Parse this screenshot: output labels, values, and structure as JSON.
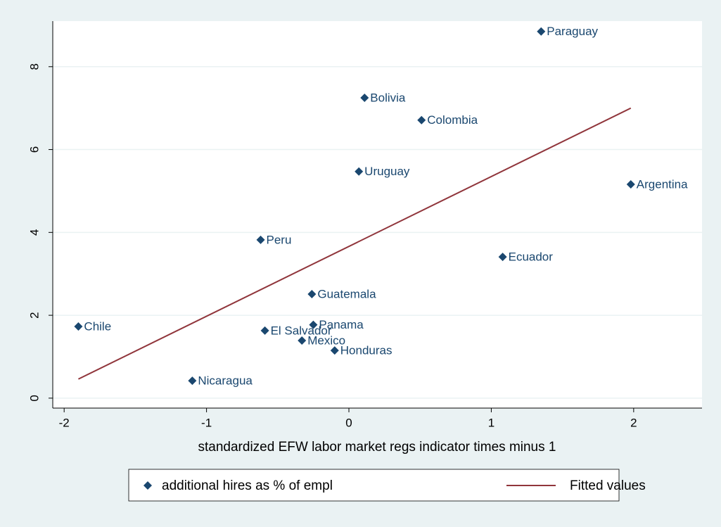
{
  "chart_data": {
    "type": "scatter",
    "xlabel": "standardized EFW labor market regs indicator times minus 1",
    "xlim": [
      -2.08,
      2.48
    ],
    "xticks": [
      -2,
      -1,
      0,
      1,
      2
    ],
    "ylim": [
      -0.24,
      9.1
    ],
    "yticks": [
      0,
      2,
      4,
      6,
      8
    ],
    "grid": true,
    "legend": "bottom",
    "series": [
      {
        "name": "additional hires as % of empl",
        "color": "#1a476f",
        "labels": [
          "Paraguay",
          "Bolivia",
          "Colombia",
          "Uruguay",
          "Argentina",
          "Peru",
          "Ecuador",
          "Guatemala",
          "Chile",
          "El Salvador",
          "Panama",
          "Mexico",
          "Honduras",
          "Nicaragua"
        ],
        "x": [
          1.35,
          0.11,
          0.51,
          0.07,
          1.98,
          -0.62,
          1.08,
          -0.26,
          -1.9,
          -0.59,
          -0.25,
          -0.33,
          -0.1,
          -1.1
        ],
        "values": [
          8.85,
          7.25,
          6.71,
          5.47,
          5.16,
          3.82,
          3.41,
          2.51,
          1.73,
          1.63,
          1.77,
          1.39,
          1.15,
          0.42
        ]
      },
      {
        "name": "Fitted values",
        "color": "#90353b",
        "type": "line",
        "x": [
          -1.9,
          1.98
        ],
        "values": [
          0.46,
          7.0
        ]
      }
    ]
  }
}
